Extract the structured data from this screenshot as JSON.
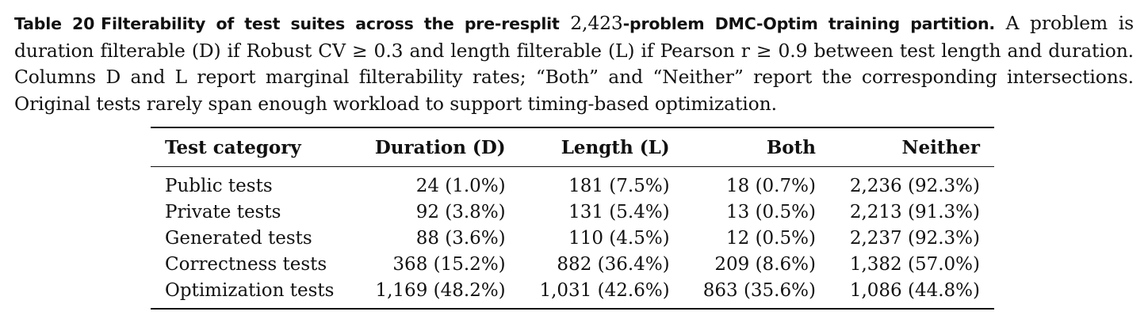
{
  "caption": {
    "label": "Table 20",
    "title_pre": "Filterability of test suites across the pre-resplit",
    "title_number": "2,423",
    "title_post": "-problem DMC-Optim training partition.",
    "body": " A problem is duration filterable (D) if Robust CV ≥ 0.3 and length filterable (L) if Pearson r ≥ 0.9 between test length and duration. Columns D and L report marginal filterability rates; “Both” and “Neither” report the corresponding intersections. Original tests rarely span enough workload to support timing-based optimization."
  },
  "table": {
    "headers": [
      "Test category",
      "Duration (D)",
      "Length (L)",
      "Both",
      "Neither"
    ],
    "rows": [
      [
        "Public tests",
        "24 (1.0%)",
        "181 (7.5%)",
        "18 (0.7%)",
        "2,236 (92.3%)"
      ],
      [
        "Private tests",
        "92 (3.8%)",
        "131 (5.4%)",
        "13 (0.5%)",
        "2,213 (91.3%)"
      ],
      [
        "Generated tests",
        "88 (3.6%)",
        "110 (4.5%)",
        "12 (0.5%)",
        "2,237 (92.3%)"
      ],
      [
        "Correctness tests",
        "368 (15.2%)",
        "882 (36.4%)",
        "209 (8.6%)",
        "1,382 (57.0%)"
      ],
      [
        "Optimization tests",
        "1,169 (48.2%)",
        "1,031 (42.6%)",
        "863 (35.6%)",
        "1,086 (44.8%)"
      ]
    ]
  }
}
